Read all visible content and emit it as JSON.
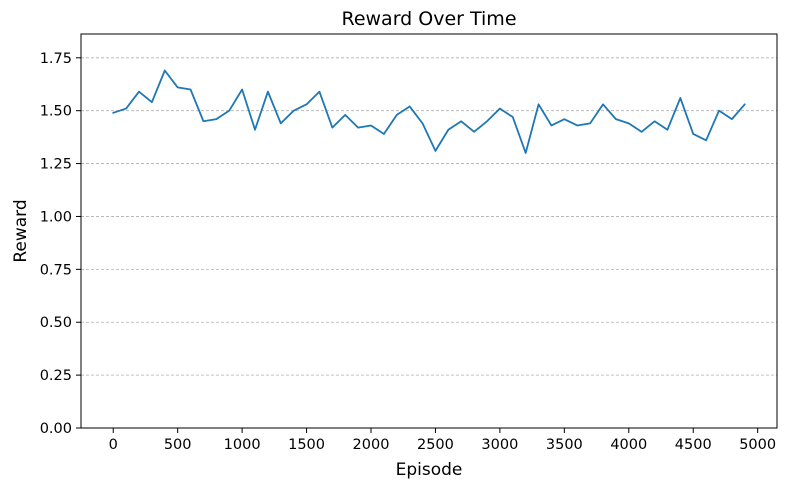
{
  "chart_data": {
    "type": "line",
    "title": "Reward Over Time",
    "xlabel": "Episode",
    "ylabel": "Reward",
    "xlim": [
      -250,
      5150
    ],
    "ylim": [
      0.0,
      1.8625
    ],
    "x_ticks": [
      0,
      500,
      1000,
      1500,
      2000,
      2500,
      3000,
      3500,
      4000,
      4500,
      5000
    ],
    "x_tick_labels": [
      "0",
      "500",
      "1000",
      "1500",
      "2000",
      "2500",
      "3000",
      "3500",
      "4000",
      "4500",
      "5000"
    ],
    "y_ticks": [
      0.0,
      0.25,
      0.5,
      0.75,
      1.0,
      1.25,
      1.5,
      1.75
    ],
    "y_tick_labels": [
      "0.00",
      "0.25",
      "0.50",
      "0.75",
      "1.00",
      "1.25",
      "1.50",
      "1.75"
    ],
    "grid": "horizontal dashed",
    "line_color": "#1f77b4",
    "series": [
      {
        "x": [
          0,
          100,
          200,
          300,
          400,
          500,
          600,
          700,
          800,
          900,
          1000,
          1100,
          1200,
          1300,
          1400,
          1500,
          1600,
          1700,
          1800,
          1900,
          2000,
          2100,
          2200,
          2300,
          2400,
          2500,
          2600,
          2700,
          2800,
          2900,
          3000,
          3100,
          3200,
          3300,
          3400,
          3500,
          3600,
          3700,
          3800,
          3900,
          4000,
          4100,
          4200,
          4300,
          4400,
          4500,
          4600,
          4700,
          4800,
          4900
        ],
        "values": [
          1.49,
          1.51,
          1.59,
          1.54,
          1.69,
          1.61,
          1.6,
          1.45,
          1.46,
          1.5,
          1.6,
          1.41,
          1.59,
          1.44,
          1.5,
          1.53,
          1.59,
          1.42,
          1.48,
          1.42,
          1.43,
          1.39,
          1.48,
          1.52,
          1.44,
          1.31,
          1.41,
          1.45,
          1.4,
          1.45,
          1.51,
          1.47,
          1.3,
          1.53,
          1.43,
          1.46,
          1.43,
          1.44,
          1.53,
          1.46,
          1.44,
          1.4,
          1.45,
          1.41,
          1.56,
          1.39,
          1.36,
          1.5,
          1.46,
          1.53
        ]
      }
    ]
  }
}
